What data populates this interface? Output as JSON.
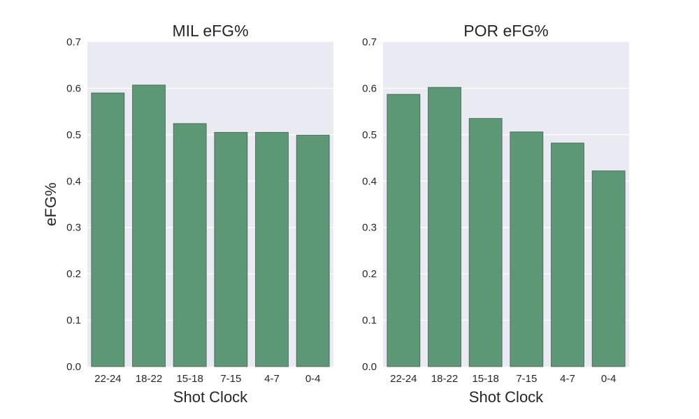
{
  "chart_data": [
    {
      "type": "bar",
      "title": "MIL eFG%",
      "xlabel": "Shot Clock",
      "ylabel": "eFG%",
      "categories": [
        "22-24",
        "18-22",
        "15-18",
        "7-15",
        "4-7",
        "0-4"
      ],
      "values": [
        0.59,
        0.607,
        0.524,
        0.505,
        0.505,
        0.499
      ],
      "ylim": [
        0,
        0.7
      ],
      "yticks": [
        "0.0",
        "0.1",
        "0.2",
        "0.3",
        "0.4",
        "0.5",
        "0.6",
        "0.7"
      ],
      "grid": true,
      "bar_color": "#5c9776",
      "background_color": "#eaeaf2"
    },
    {
      "type": "bar",
      "title": "POR eFG%",
      "xlabel": "Shot Clock",
      "ylabel": "",
      "categories": [
        "22-24",
        "18-22",
        "15-18",
        "7-15",
        "4-7",
        "0-4"
      ],
      "values": [
        0.587,
        0.602,
        0.535,
        0.506,
        0.482,
        0.422
      ],
      "ylim": [
        0,
        0.7
      ],
      "yticks": [
        "0.0",
        "0.1",
        "0.2",
        "0.3",
        "0.4",
        "0.5",
        "0.6",
        "0.7"
      ],
      "grid": true,
      "bar_color": "#5c9776",
      "background_color": "#eaeaf2"
    }
  ]
}
